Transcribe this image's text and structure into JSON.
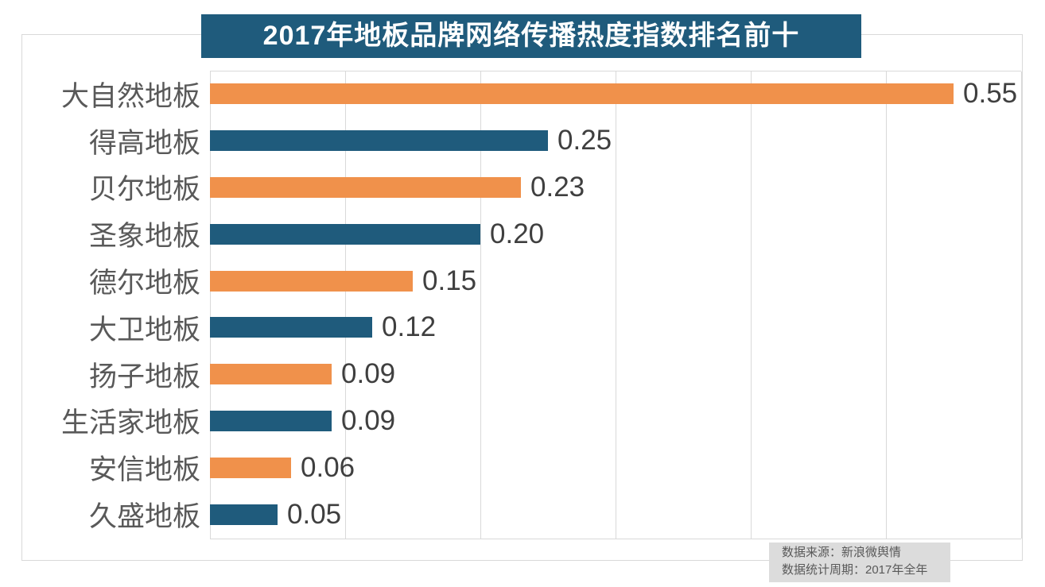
{
  "chart": {
    "title": "2017年地板品牌网络传播热度指数排名前十"
  },
  "chart_data": {
    "type": "bar",
    "orientation": "horizontal",
    "title": "2017年地板品牌网络传播热度指数排名前十",
    "categories": [
      "大自然地板",
      "得高地板",
      "贝尔地板",
      "圣象地板",
      "德尔地板",
      "大卫地板",
      "扬子地板",
      "生活家地板",
      "安信地板",
      "久盛地板"
    ],
    "values": [
      0.55,
      0.25,
      0.23,
      0.2,
      0.15,
      0.12,
      0.09,
      0.09,
      0.06,
      0.05
    ],
    "value_labels": [
      "0.55",
      "0.25",
      "0.23",
      "0.20",
      "0.15",
      "0.12",
      "0.09",
      "0.09",
      "0.06",
      "0.05"
    ],
    "xlabel": "",
    "ylabel": "",
    "xlim": [
      0,
      0.6
    ],
    "gridline_interval": 0.1,
    "grid": true,
    "legend": false,
    "bar_colors": [
      "#f0914b",
      "#1f5b7c"
    ]
  },
  "footer": {
    "source_line": "数据来源：新浪微舆情",
    "period_line": "数据统计周期：2017年全年"
  },
  "colors": {
    "banner_bg": "#1f5b7c",
    "banner_text": "#ffffff",
    "orange_bar": "#f0914b",
    "blue_bar": "#1f5b7c",
    "gridline": "#d9d9d9",
    "frame_border": "#d9d9d9",
    "category_text": "#595959",
    "value_text": "#3f3f3f",
    "footer_bg": "#dcdcdc",
    "footer_text": "#595959"
  }
}
